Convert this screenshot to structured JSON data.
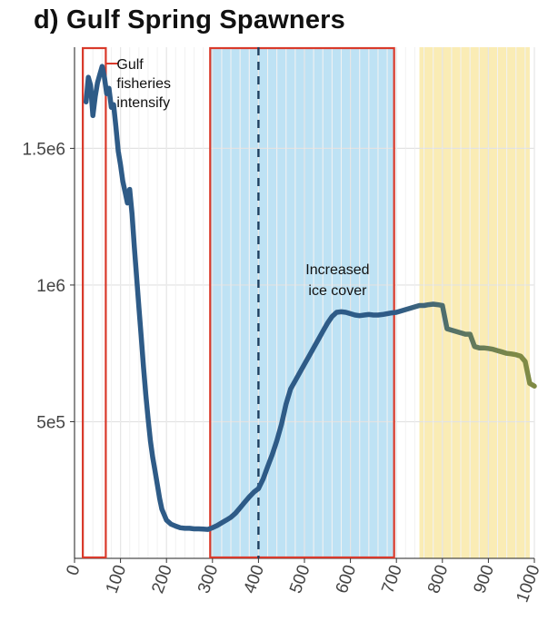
{
  "panel_label": "d)",
  "title": "Gulf Spring Spawners",
  "chart_data": {
    "type": "line",
    "title": "Gulf Spring Spawners",
    "xlabel": "",
    "ylabel": "",
    "xlim": [
      0,
      1000
    ],
    "ylim": [
      0,
      1870000
    ],
    "x_ticks": [
      0,
      100,
      200,
      300,
      400,
      500,
      600,
      700,
      800,
      900,
      1000
    ],
    "y_ticks": [
      {
        "value": 500000,
        "label": "5e5"
      },
      {
        "value": 1000000,
        "label": "1e6"
      },
      {
        "value": 1500000,
        "label": "1.5e6"
      }
    ],
    "grid": true,
    "colors": {
      "line_early": "#2e5b87",
      "line_late": "#7f8a45",
      "ice_shade": "#b3ddf2",
      "late_shade": "#f9e9a8",
      "box": "#d93a2b",
      "dashed": "#1f3f5f"
    },
    "shaded_regions": [
      {
        "name": "Increased ice cover",
        "x_start": 295,
        "x_end": 695,
        "color": "#b3ddf2"
      },
      {
        "name": "late-period",
        "x_start": 750,
        "x_end": 990,
        "color": "#f9e9a8"
      }
    ],
    "boxes": [
      {
        "x_start": 18,
        "x_end": 68
      },
      {
        "x_start": 295,
        "x_end": 695
      }
    ],
    "vline_dashed": 400,
    "annotations": [
      {
        "text": "Gulf fisheries intensify",
        "x": 68,
        "lines": [
          "Gulf",
          "fisheries",
          "intensify"
        ]
      },
      {
        "text": "Increased ice cover",
        "x": 570,
        "lines": [
          "Increased",
          "ice cover"
        ]
      }
    ],
    "series": [
      {
        "x": [
          25,
          30,
          35,
          40,
          45,
          50,
          55,
          60,
          65,
          70,
          75,
          80,
          85,
          90,
          95,
          100,
          105,
          110,
          115,
          120,
          125,
          130,
          135,
          140,
          145,
          150,
          155,
          160,
          165,
          170,
          175,
          180,
          185,
          190,
          200,
          210,
          220,
          230,
          240,
          250,
          260,
          270,
          280,
          290,
          300,
          310,
          320,
          330,
          340,
          350,
          360,
          370,
          380,
          390,
          400,
          410,
          420,
          430,
          440,
          450,
          460,
          470,
          480,
          490,
          500,
          510,
          520,
          530,
          540,
          550,
          560,
          570,
          580,
          590,
          600,
          610,
          620,
          630,
          640,
          650,
          660,
          670,
          680,
          690,
          700,
          710,
          720,
          730,
          740,
          750,
          760,
          770,
          780,
          790,
          800,
          810,
          820,
          830,
          840,
          850,
          860,
          870,
          880,
          890,
          900,
          910,
          920,
          930,
          940,
          950,
          960,
          970,
          980,
          990,
          1000
        ],
        "y": [
          1670000,
          1760000,
          1730000,
          1620000,
          1690000,
          1740000,
          1770000,
          1800000,
          1760000,
          1700000,
          1720000,
          1650000,
          1660000,
          1580000,
          1490000,
          1440000,
          1380000,
          1340000,
          1300000,
          1350000,
          1260000,
          1140000,
          1030000,
          920000,
          810000,
          700000,
          600000,
          510000,
          430000,
          370000,
          320000,
          270000,
          220000,
          180000,
          140000,
          125000,
          118000,
          112000,
          110000,
          110000,
          108000,
          108000,
          107000,
          106000,
          112000,
          120000,
          130000,
          140000,
          150000,
          165000,
          185000,
          205000,
          225000,
          242000,
          255000,
          290000,
          335000,
          380000,
          430000,
          490000,
          565000,
          620000,
          650000,
          680000,
          710000,
          740000,
          770000,
          800000,
          830000,
          860000,
          885000,
          900000,
          902000,
          900000,
          895000,
          890000,
          888000,
          890000,
          892000,
          890000,
          890000,
          892000,
          895000,
          898000,
          900000,
          905000,
          910000,
          915000,
          920000,
          925000,
          925000,
          928000,
          930000,
          928000,
          925000,
          840000,
          835000,
          830000,
          825000,
          820000,
          820000,
          775000,
          770000,
          770000,
          768000,
          765000,
          760000,
          755000,
          750000,
          748000,
          745000,
          740000,
          720000,
          640000,
          630000
        ]
      }
    ]
  }
}
